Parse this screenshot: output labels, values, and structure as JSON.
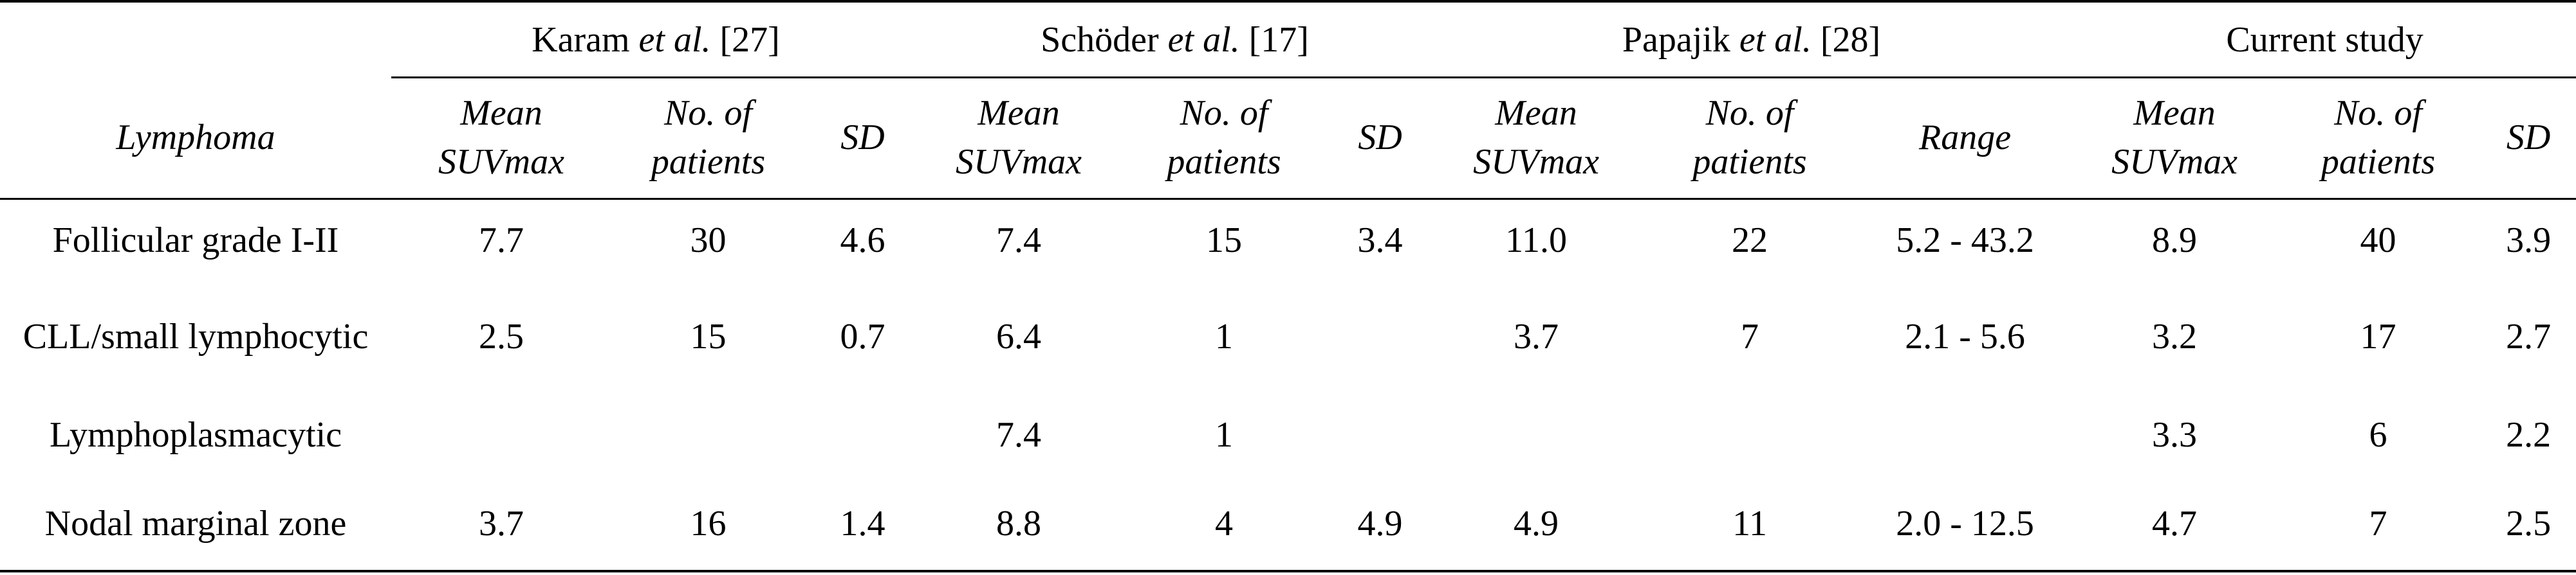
{
  "table": {
    "groups": [
      {
        "author": "Karam",
        "etal": "et al.",
        "ref": "[27]",
        "span": 3
      },
      {
        "author": "Schöder",
        "etal": "et al.",
        "ref": "[17]",
        "span": 3
      },
      {
        "author": "Papajik",
        "etal": "et al.",
        "ref": "[28]",
        "span": 3
      },
      {
        "author": "Current study",
        "span": 3
      }
    ],
    "columns": [
      "Lymphoma",
      "Mean SUVmax",
      "No. of patients",
      "SD",
      "Mean SUVmax",
      "No. of patients",
      "SD",
      "Mean SUVmax",
      "No. of patients",
      "Range",
      "Mean SUVmax",
      "No. of patients",
      "SD"
    ],
    "rows": [
      [
        "Follicular grade I-II",
        "7.7",
        "30",
        "4.6",
        "7.4",
        "15",
        "3.4",
        "11.0",
        "22",
        "5.2 - 43.2",
        "8.9",
        "40",
        "3.9"
      ],
      [
        "CLL/small lymphocytic",
        "2.5",
        "15",
        "0.7",
        "6.4",
        "1",
        null,
        "3.7",
        "7",
        "2.1 - 5.6",
        "3.2",
        "17",
        "2.7"
      ],
      [
        "Lymphoplasmacytic",
        null,
        null,
        null,
        "7.4",
        "1",
        null,
        null,
        null,
        null,
        "3.3",
        "6",
        "2.2"
      ],
      [
        "Nodal marginal zone",
        "3.7",
        "16",
        "1.4",
        "8.8",
        "4",
        "4.9",
        "4.9",
        "11",
        "2.0 - 12.5",
        "4.7",
        "7",
        "2.5"
      ]
    ]
  }
}
